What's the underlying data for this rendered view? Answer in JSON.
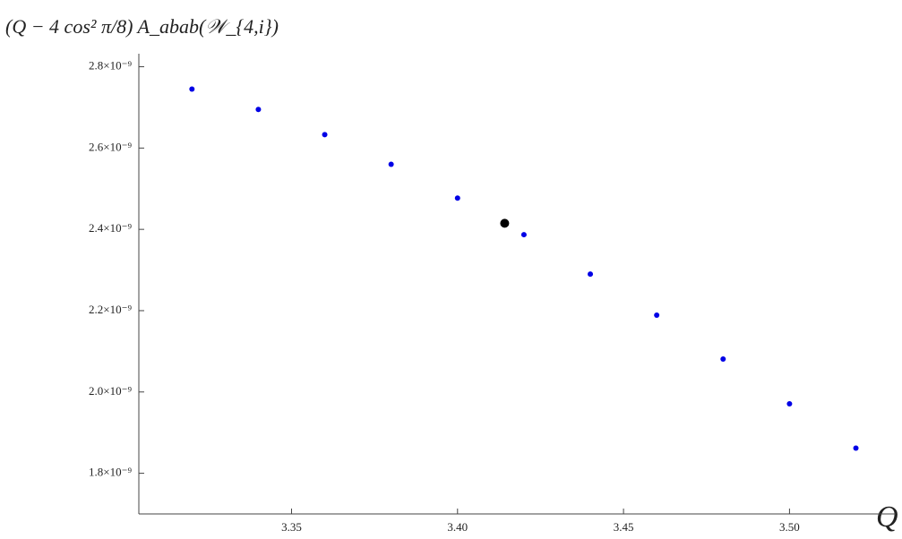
{
  "chart_data": {
    "type": "scatter",
    "y_label": "(Q − 4 cos² π/8) A_abab(𝒲_{4,i})",
    "x_label": "Q",
    "series": [
      {
        "color": "#0000e6",
        "x": [
          3.32,
          3.34,
          3.36,
          3.38,
          3.4,
          3.42,
          3.44,
          3.46,
          3.48,
          3.5,
          3.52
        ],
        "values": [
          2.745e-09,
          2.695e-09,
          2.633e-09,
          2.56e-09,
          2.477e-09,
          2.387e-09,
          2.29e-09,
          2.189e-09,
          2.081e-09,
          1.971e-09,
          1.862e-09
        ]
      },
      {
        "color": "#000000",
        "x": [
          3.4142
        ],
        "values": [
          2.415e-09
        ],
        "size": "large"
      }
    ],
    "xlim": [
      3.304,
      3.532
    ],
    "ylim": [
      1.7e-09,
      2.81e-09
    ],
    "xticks": [
      {
        "value": 3.35,
        "label": "3.35"
      },
      {
        "value": 3.4,
        "label": "3.40"
      },
      {
        "value": 3.45,
        "label": "3.45"
      },
      {
        "value": 3.5,
        "label": "3.50"
      }
    ],
    "yticks": [
      {
        "value": 1.8e-09,
        "label": "1.8×10⁻⁹"
      },
      {
        "value": 2e-09,
        "label": "2.0×10⁻⁹"
      },
      {
        "value": 2.2e-09,
        "label": "2.2×10⁻⁹"
      },
      {
        "value": 2.4e-09,
        "label": "2.4×10⁻⁹"
      },
      {
        "value": 2.6e-09,
        "label": "2.6×10⁻⁹"
      },
      {
        "value": 2.8e-09,
        "label": "2.8×10⁻⁹"
      }
    ],
    "grid": false
  }
}
